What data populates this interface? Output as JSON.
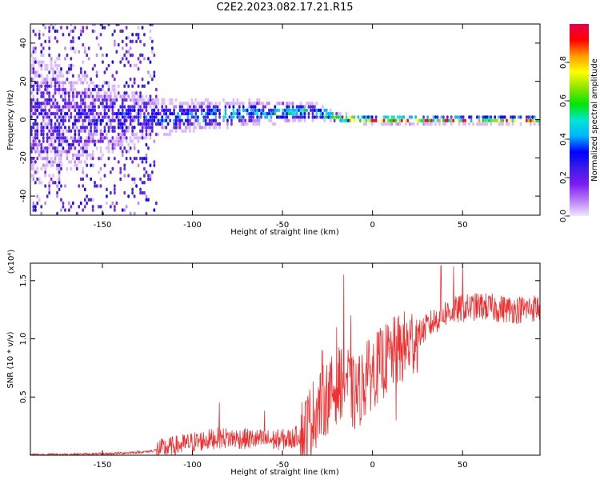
{
  "title": "C2E2.2023.082.17.21.R15",
  "chart_data": [
    {
      "type": "heatmap",
      "xlabel": "Height of straight line (km)",
      "ylabel": "Frequency (Hz)",
      "xlim": [
        -190,
        93
      ],
      "ylim": [
        -50,
        50
      ],
      "xticks": [
        -150,
        -100,
        -50,
        0,
        50
      ],
      "yticks": [
        -40,
        -20,
        0,
        20,
        40
      ],
      "colorbar": {
        "label": "Normalized spectral amplitude",
        "range": [
          0,
          1
        ],
        "ticks": [
          "0.0",
          "0.2",
          "0.4",
          "0.6",
          "0.8"
        ],
        "tick_values": [
          0,
          0.2,
          0.4,
          0.6,
          0.8
        ]
      },
      "spectrum_profile": {
        "x": [
          -190,
          -150,
          -120,
          -100,
          -80,
          -60,
          -40,
          -30,
          -20,
          0,
          20,
          40,
          60,
          93
        ],
        "center_frequency": [
          0,
          0,
          0,
          1,
          2,
          3,
          3,
          3,
          0,
          -1,
          -1,
          -1,
          -1,
          -1
        ],
        "halfwidth": [
          40,
          20,
          10,
          8,
          7,
          6,
          5,
          4,
          2,
          2,
          2,
          2,
          2,
          2
        ],
        "peak_amplitude": [
          0.3,
          0.35,
          0.4,
          0.45,
          0.5,
          0.5,
          0.55,
          0.6,
          1.0,
          1.0,
          1.0,
          1.0,
          1.0,
          0.9
        ]
      },
      "colors": {
        "colormap": [
          "#f0e6ff",
          "#b77bf5",
          "#7a1cf0",
          "#3a1ce8",
          "#0000ff",
          "#00b4ff",
          "#00e6d2",
          "#00e600",
          "#8be600",
          "#ffff00",
          "#ff9b00",
          "#ff0000",
          "#e6004b"
        ]
      }
    },
    {
      "type": "line",
      "xlabel": "Height of straight line (km)",
      "ylabel": "SNR (10 * v/v)",
      "y_multiplier": "(x10⁴)",
      "xlim": [
        -190,
        93
      ],
      "ylim": [
        0,
        1.65
      ],
      "xticks": [
        -150,
        -100,
        -50,
        0,
        50
      ],
      "yticks": [
        "0.5",
        "1.0",
        "1.5"
      ],
      "ytick_values": [
        0.5,
        1.0,
        1.5
      ],
      "series": [
        {
          "trend": {
            "x": [
              -190,
              -150,
              -125,
              -115,
              -100,
              -85,
              -70,
              -55,
              -45,
              -38,
              -30,
              -22,
              -15,
              -10,
              0,
              10,
              20,
              30,
              40,
              50,
              60,
              70,
              80,
              93
            ],
            "y": [
              0.003,
              0.01,
              0.03,
              0.06,
              0.11,
              0.15,
              0.14,
              0.13,
              0.14,
              0.2,
              0.42,
              0.55,
              0.68,
              0.5,
              0.72,
              0.85,
              0.95,
              1.1,
              1.22,
              1.26,
              1.28,
              1.26,
              1.25,
              1.27
            ]
          },
          "spikes": {
            "x": [
              -85,
              -60,
              -28,
              -20,
              -16,
              -12,
              -3,
              8,
              13,
              38,
              45,
              50
            ],
            "y": [
              0.45,
              0.38,
              0.9,
              1.1,
              1.55,
              1.2,
              0.98,
              1.0,
              0.3,
              1.63,
              1.62,
              1.66
            ]
          },
          "color": "#f03030"
        }
      ]
    }
  ]
}
